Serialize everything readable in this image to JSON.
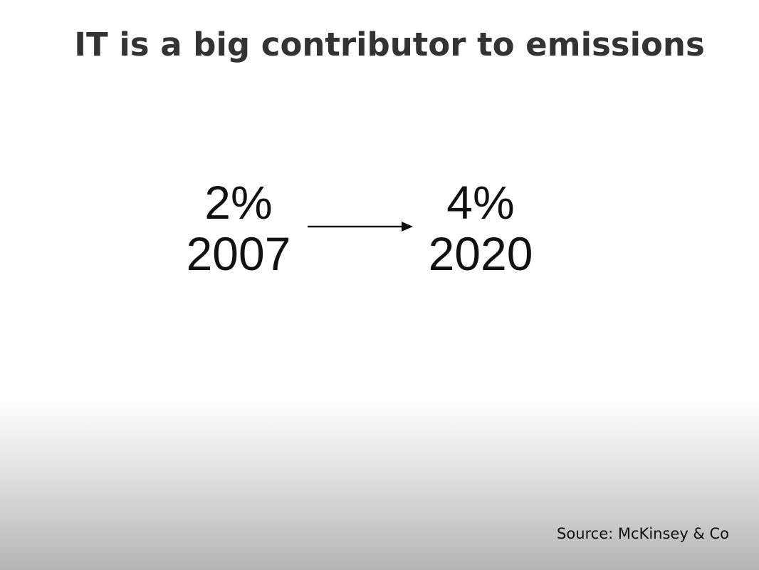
{
  "title": "IT is a big contributor to emissions",
  "before": {
    "value": "2%",
    "year": "2007"
  },
  "after": {
    "value": "4%",
    "year": "2020"
  },
  "source": "Source: McKinsey & Co"
}
